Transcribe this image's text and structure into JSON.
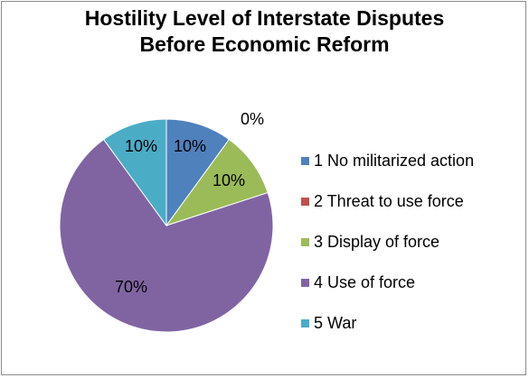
{
  "chart_data": {
    "type": "pie",
    "title": "Hostility Level of Interstate Disputes Before Economic Reform",
    "title_lines": [
      "Hostility Level of Interstate Disputes",
      "Before Economic Reform"
    ],
    "categories": [
      "1 No militarized action",
      "2 Threat to use force",
      "3 Display of force",
      "4 Use of force",
      "5 War"
    ],
    "values": [
      10,
      0,
      10,
      70,
      10
    ],
    "data_labels": [
      "10%",
      "0%",
      "10%",
      "70%",
      "10%"
    ],
    "colors": [
      "#4f81bd",
      "#c0504d",
      "#9bbb59",
      "#8064a2",
      "#4bacc6"
    ],
    "legend_position": "right"
  }
}
